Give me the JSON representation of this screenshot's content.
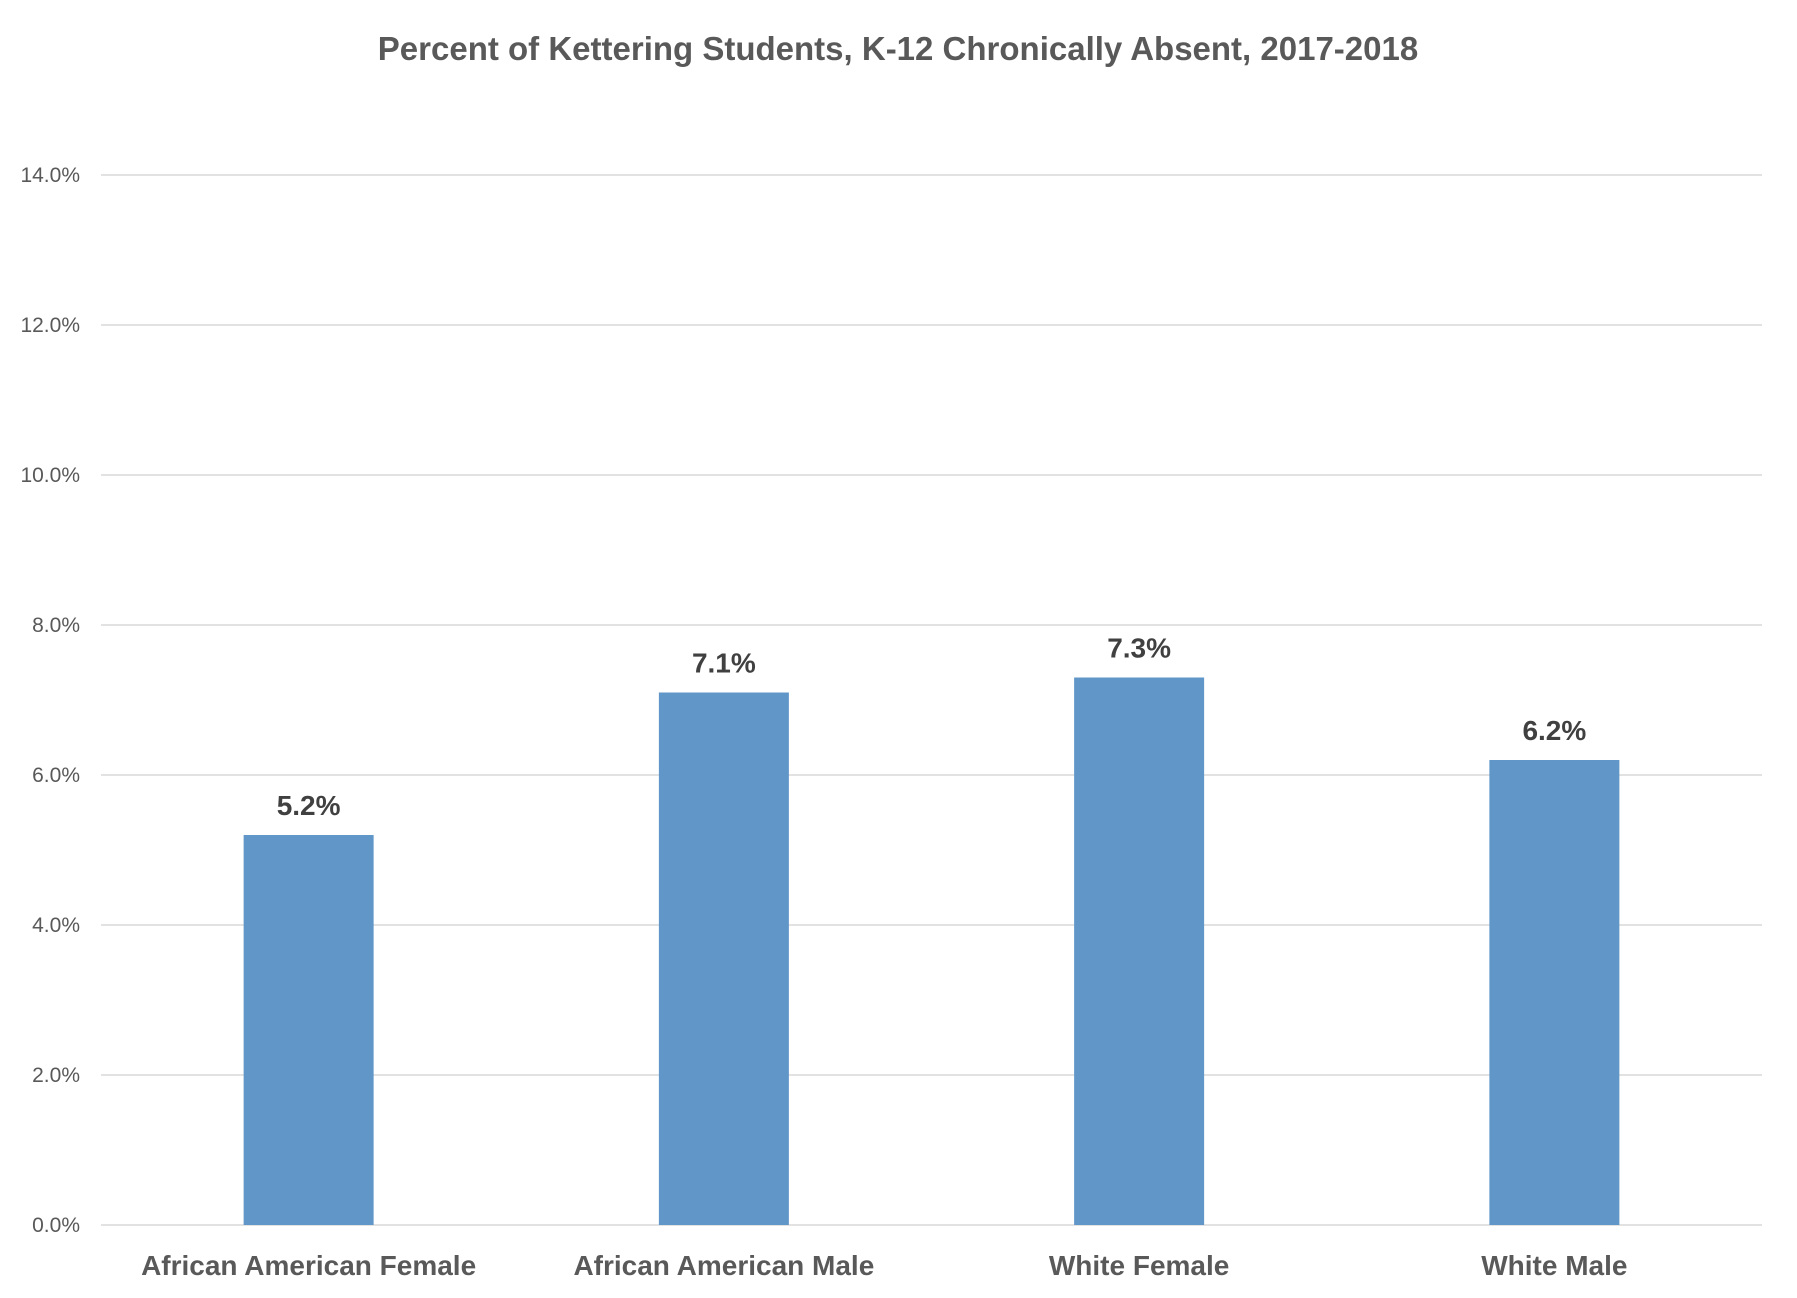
{
  "chart_data": {
    "type": "bar",
    "title": "Percent of Kettering Students, K-12 Chronically Absent, 2017-2018",
    "xlabel": "",
    "ylabel": "",
    "categories": [
      "African American Female",
      "African American Male",
      "White Female",
      "White Male"
    ],
    "values": [
      5.2,
      7.1,
      7.3,
      6.2
    ],
    "data_labels": [
      "5.2%",
      "7.1%",
      "7.3%",
      "6.2%"
    ],
    "ylim": [
      0,
      14
    ],
    "y_ticks": [
      0,
      2,
      4,
      6,
      8,
      10,
      12,
      14
    ],
    "y_tick_labels": [
      "0.0%",
      "2.0%",
      "4.0%",
      "6.0%",
      "8.0%",
      "10.0%",
      "12.0%",
      "14.0%"
    ],
    "grid": true,
    "legend": "none",
    "bar_color": "#6196C9"
  }
}
